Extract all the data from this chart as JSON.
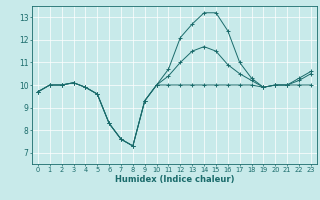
{
  "xlabel": "Humidex (Indice chaleur)",
  "bg_color": "#c8eaea",
  "line_color": "#1a6b6b",
  "grid_color": "#ffffff",
  "xlim": [
    -0.5,
    23.5
  ],
  "ylim": [
    6.5,
    13.5
  ],
  "yticks": [
    7,
    8,
    9,
    10,
    11,
    12,
    13
  ],
  "xticks": [
    0,
    1,
    2,
    3,
    4,
    5,
    6,
    7,
    8,
    9,
    10,
    11,
    12,
    13,
    14,
    15,
    16,
    17,
    18,
    19,
    20,
    21,
    22,
    23
  ],
  "series": [
    {
      "x": [
        0,
        1,
        2,
        3,
        4,
        5,
        6,
        7,
        8,
        9,
        10,
        11,
        12,
        13,
        14,
        15,
        16,
        17,
        18,
        19,
        20,
        21,
        22,
        23
      ],
      "y": [
        9.7,
        10.0,
        10.0,
        10.1,
        9.9,
        9.6,
        8.3,
        7.6,
        7.3,
        9.3,
        10.0,
        10.0,
        10.0,
        10.0,
        10.0,
        10.0,
        10.0,
        10.0,
        10.0,
        9.9,
        10.0,
        10.0,
        10.0,
        10.0
      ]
    },
    {
      "x": [
        0,
        1,
        2,
        3,
        4,
        5,
        6,
        7,
        8,
        9,
        10,
        11,
        12,
        13,
        14,
        15,
        16,
        17,
        18,
        19,
        20,
        21,
        22,
        23
      ],
      "y": [
        9.7,
        10.0,
        10.0,
        10.1,
        9.9,
        9.6,
        8.3,
        7.6,
        7.3,
        9.3,
        10.0,
        10.7,
        12.1,
        12.7,
        13.2,
        13.2,
        12.4,
        11.0,
        10.3,
        9.9,
        10.0,
        10.0,
        10.3,
        10.6
      ]
    },
    {
      "x": [
        0,
        1,
        2,
        3,
        4,
        5,
        6,
        7,
        8,
        9,
        10,
        11,
        12,
        13,
        14,
        15,
        16,
        17,
        18,
        19,
        20,
        21,
        22,
        23
      ],
      "y": [
        9.7,
        10.0,
        10.0,
        10.1,
        9.9,
        9.6,
        8.3,
        7.6,
        7.3,
        9.3,
        10.0,
        10.4,
        11.0,
        11.5,
        11.7,
        11.5,
        10.9,
        10.5,
        10.2,
        9.9,
        10.0,
        10.0,
        10.2,
        10.5
      ]
    }
  ]
}
